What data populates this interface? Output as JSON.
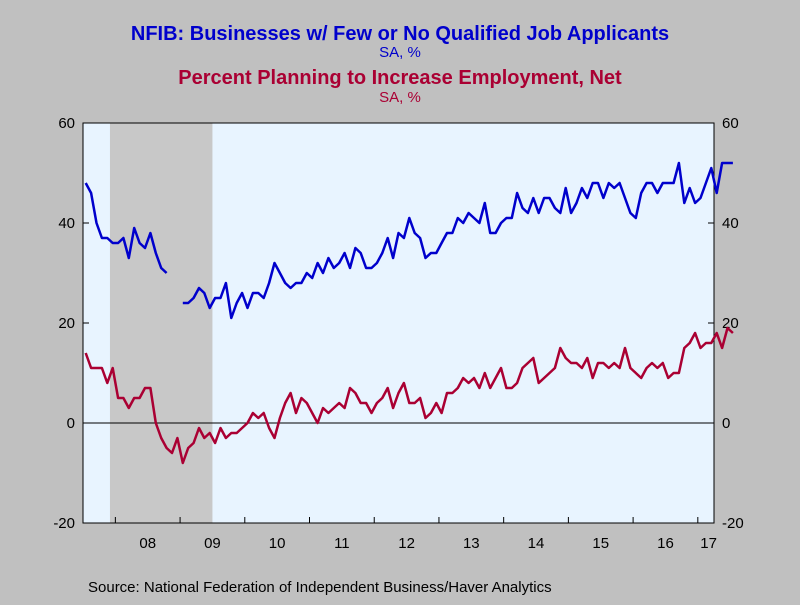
{
  "chart_data": {
    "type": "line",
    "titles": [
      {
        "text": "NFIB: Businesses w/ Few or No Qualified Job Applicants",
        "color": "#0000cc"
      },
      {
        "text": "SA, %",
        "color": "#0000cc"
      },
      {
        "text": "Percent Planning to Increase Employment, Net",
        "color": "#aa0033"
      },
      {
        "text": "SA, %",
        "color": "#aa0033"
      }
    ],
    "source": "Source:  National Federation of Independent Business/Haver Analytics",
    "ylim": [
      -20,
      60
    ],
    "y_ticks": [
      -20,
      0,
      20,
      40,
      60
    ],
    "x_range": [
      "2007-07",
      "2017-04"
    ],
    "x_tick_labels": [
      "08",
      "09",
      "10",
      "11",
      "12",
      "13",
      "14",
      "15",
      "16",
      "17"
    ],
    "recession_shading": {
      "start": "2007-12",
      "end": "2009-06",
      "color": "#c8c8c8"
    },
    "plot_background": "#e8f4ff",
    "series": [
      {
        "color": "#0000cc",
        "start": "2007-07",
        "values": [
          48,
          46,
          40,
          37,
          37,
          36,
          36,
          37,
          33,
          39,
          36,
          35,
          38,
          34,
          31,
          30,
          null,
          null,
          24,
          24,
          25,
          27,
          26,
          23,
          25,
          25,
          28,
          21,
          24,
          26,
          23,
          26,
          26,
          25,
          28,
          32,
          30,
          28,
          27,
          28,
          28,
          30,
          29,
          32,
          30,
          33,
          31,
          32,
          34,
          31,
          35,
          34,
          31,
          31,
          32,
          34,
          37,
          33,
          38,
          37,
          41,
          38,
          37,
          33,
          34,
          34,
          36,
          38,
          38,
          41,
          40,
          42,
          41,
          40,
          44,
          38,
          38,
          40,
          41,
          41,
          46,
          43,
          42,
          45,
          42,
          45,
          45,
          43,
          42,
          47,
          42,
          44,
          47,
          45,
          48,
          48,
          45,
          48,
          47,
          48,
          45,
          42,
          41,
          46,
          48,
          48,
          46,
          48,
          48,
          48,
          52,
          44,
          47,
          44,
          45,
          48,
          51,
          46,
          52,
          52,
          52
        ]
      },
      {
        "color": "#aa0033",
        "start": "2007-07",
        "values": [
          14,
          11,
          11,
          11,
          8,
          11,
          5,
          5,
          3,
          5,
          5,
          7,
          7,
          0,
          -3,
          -5,
          -6,
          -3,
          -8,
          -5,
          -4,
          -1,
          -3,
          -2,
          -4,
          -1,
          -3,
          -2,
          -2,
          -1,
          0,
          2,
          1,
          2,
          -1,
          -3,
          1,
          4,
          6,
          2,
          5,
          4,
          2,
          0,
          3,
          2,
          3,
          4,
          3,
          7,
          6,
          4,
          4,
          2,
          4,
          5,
          7,
          3,
          6,
          8,
          4,
          4,
          5,
          1,
          2,
          4,
          2,
          6,
          6,
          7,
          9,
          8,
          9,
          7,
          10,
          7,
          9,
          11,
          7,
          7,
          8,
          11,
          12,
          13,
          8,
          9,
          10,
          11,
          15,
          13,
          12,
          12,
          11,
          13,
          9,
          12,
          12,
          11,
          12,
          11,
          15,
          11,
          10,
          9,
          11,
          12,
          11,
          12,
          9,
          10,
          10,
          15,
          16,
          18,
          15,
          16,
          16,
          18,
          15,
          19,
          18
        ]
      }
    ]
  }
}
